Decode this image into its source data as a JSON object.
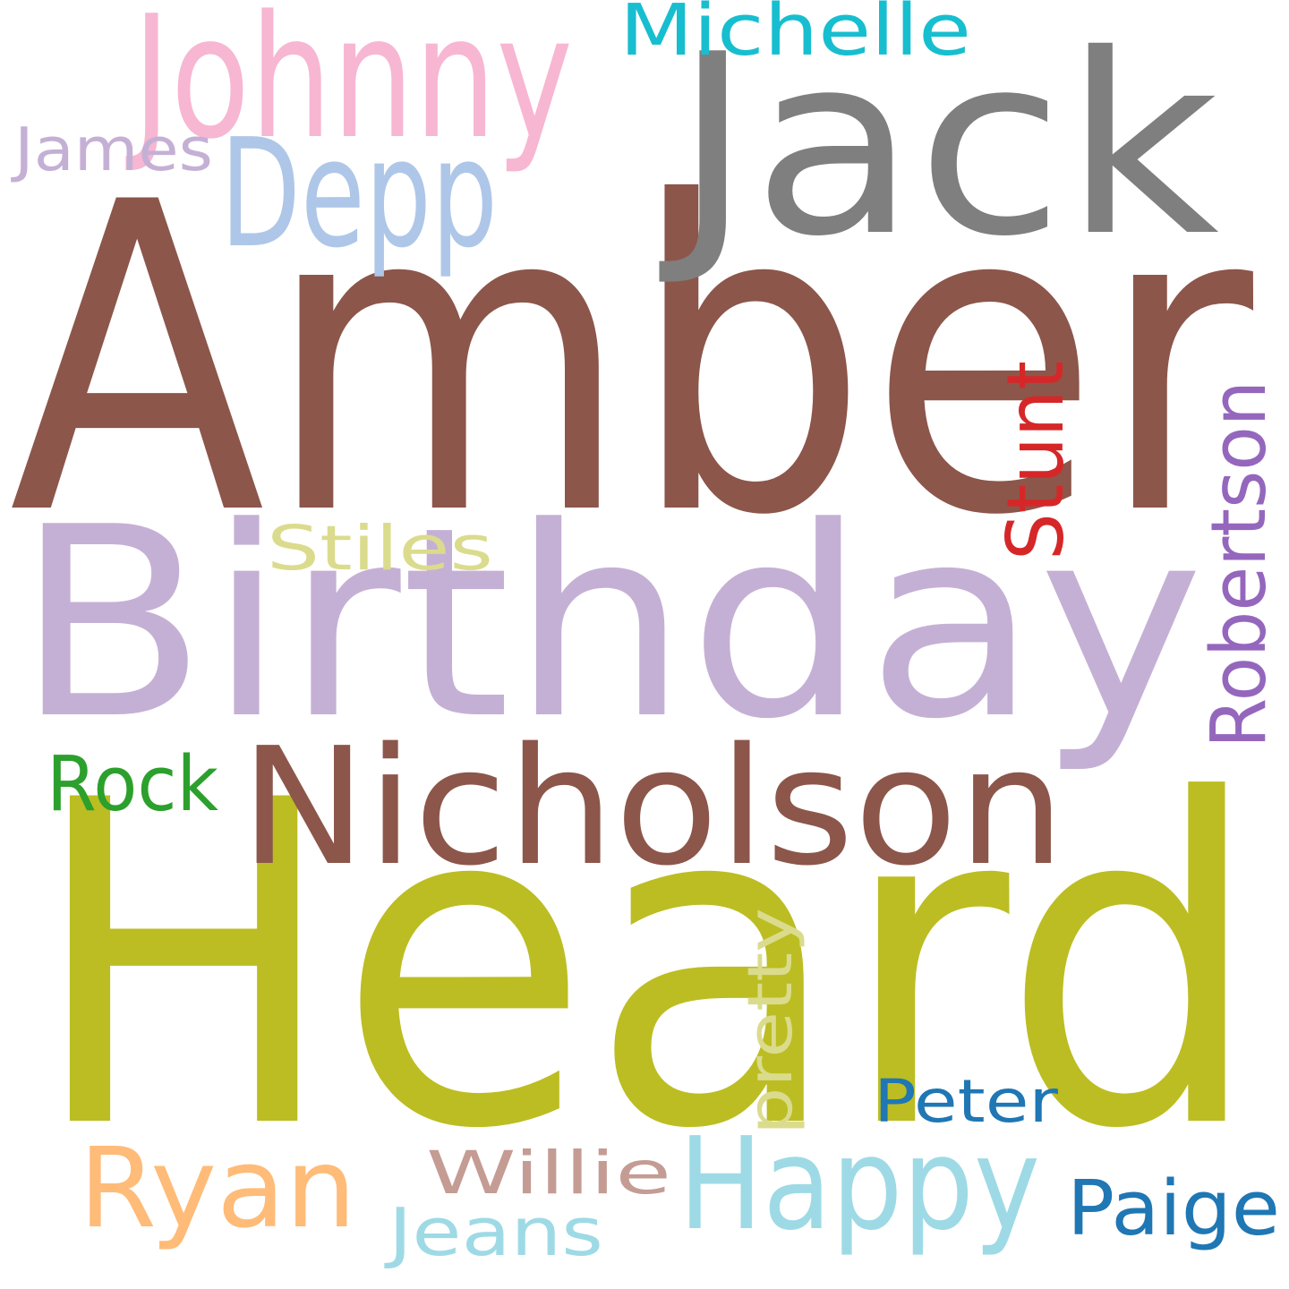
{
  "words": [
    {
      "id": "amber",
      "text": "Amber",
      "color": "#8c564b",
      "orientation": "horizontal"
    },
    {
      "id": "heard",
      "text": "Heard",
      "color": "#bcbd22",
      "orientation": "horizontal"
    },
    {
      "id": "birthday",
      "text": "Birthday",
      "color": "#c5b0d5",
      "orientation": "horizontal"
    },
    {
      "id": "jack",
      "text": "Jack",
      "color": "#7f7f7f",
      "orientation": "horizontal"
    },
    {
      "id": "nicholson",
      "text": "Nicholson",
      "color": "#8c564b",
      "orientation": "horizontal"
    },
    {
      "id": "johnny",
      "text": "Johnny",
      "color": "#f7b6d2",
      "orientation": "horizontal"
    },
    {
      "id": "depp",
      "text": "Depp",
      "color": "#aec7e8",
      "orientation": "horizontal"
    },
    {
      "id": "happy",
      "text": "Happy",
      "color": "#9edae5",
      "orientation": "horizontal"
    },
    {
      "id": "ryan",
      "text": "Ryan",
      "color": "#ffbb78",
      "orientation": "horizontal"
    },
    {
      "id": "robertson",
      "text": "Robertson",
      "color": "#9467bd",
      "orientation": "vertical"
    },
    {
      "id": "michelle",
      "text": "Michelle",
      "color": "#17becf",
      "orientation": "horizontal"
    },
    {
      "id": "stunt",
      "text": "Stunt",
      "color": "#d62728",
      "orientation": "vertical"
    },
    {
      "id": "rock",
      "text": "Rock",
      "color": "#2ca02c",
      "orientation": "horizontal"
    },
    {
      "id": "james",
      "text": "James",
      "color": "#c5b0d5",
      "orientation": "horizontal"
    },
    {
      "id": "stiles",
      "text": "Stiles",
      "color": "#dbdb8d",
      "orientation": "horizontal"
    },
    {
      "id": "pretty",
      "text": "pretty",
      "color": "#dbdb8d",
      "orientation": "vertical"
    },
    {
      "id": "peter",
      "text": "Peter",
      "color": "#1f77b4",
      "orientation": "horizontal"
    },
    {
      "id": "paige",
      "text": "Paige",
      "color": "#1f77b4",
      "orientation": "horizontal"
    },
    {
      "id": "willie",
      "text": "Willie",
      "color": "#c49c94",
      "orientation": "horizontal"
    },
    {
      "id": "jeans",
      "text": "Jeans",
      "color": "#9edae5",
      "orientation": "horizontal"
    }
  ]
}
